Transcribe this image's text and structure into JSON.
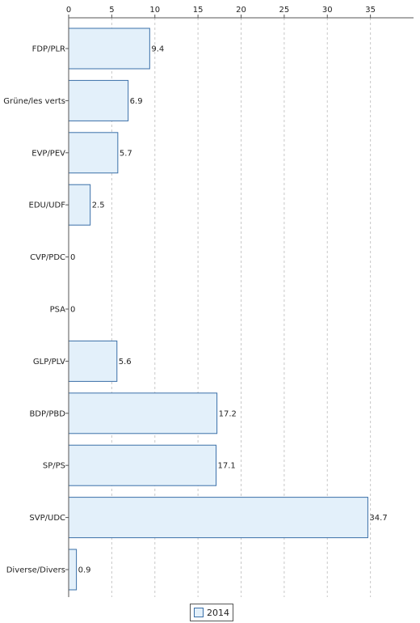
{
  "chart_data": {
    "type": "bar",
    "orientation": "horizontal",
    "categories": [
      "FDP/PLR",
      "Grüne/les verts",
      "EVP/PEV",
      "EDU/UDF",
      "CVP/PDC",
      "PSA",
      "GLP/PLV",
      "BDP/PBD",
      "SP/PS",
      "SVP/UDC",
      "Diverse/Divers"
    ],
    "series": [
      {
        "name": "2014",
        "values": [
          9.4,
          6.9,
          5.7,
          2.5,
          0,
          0,
          5.6,
          17.2,
          17.1,
          34.7,
          0.9
        ],
        "fill": "#e3f0fa",
        "stroke": "#3a6fa8"
      }
    ],
    "data_labels": [
      "9.4",
      "6.9",
      "5.7",
      "2.5",
      "0",
      "0",
      "5.6",
      "17.2",
      "17.1",
      "34.7",
      "0.9"
    ],
    "x_ticks": [
      "0",
      "5",
      "10",
      "15",
      "20",
      "25",
      "30",
      "35"
    ],
    "xlim": [
      0,
      40
    ],
    "grid": true,
    "legend_position": "bottom-center"
  }
}
